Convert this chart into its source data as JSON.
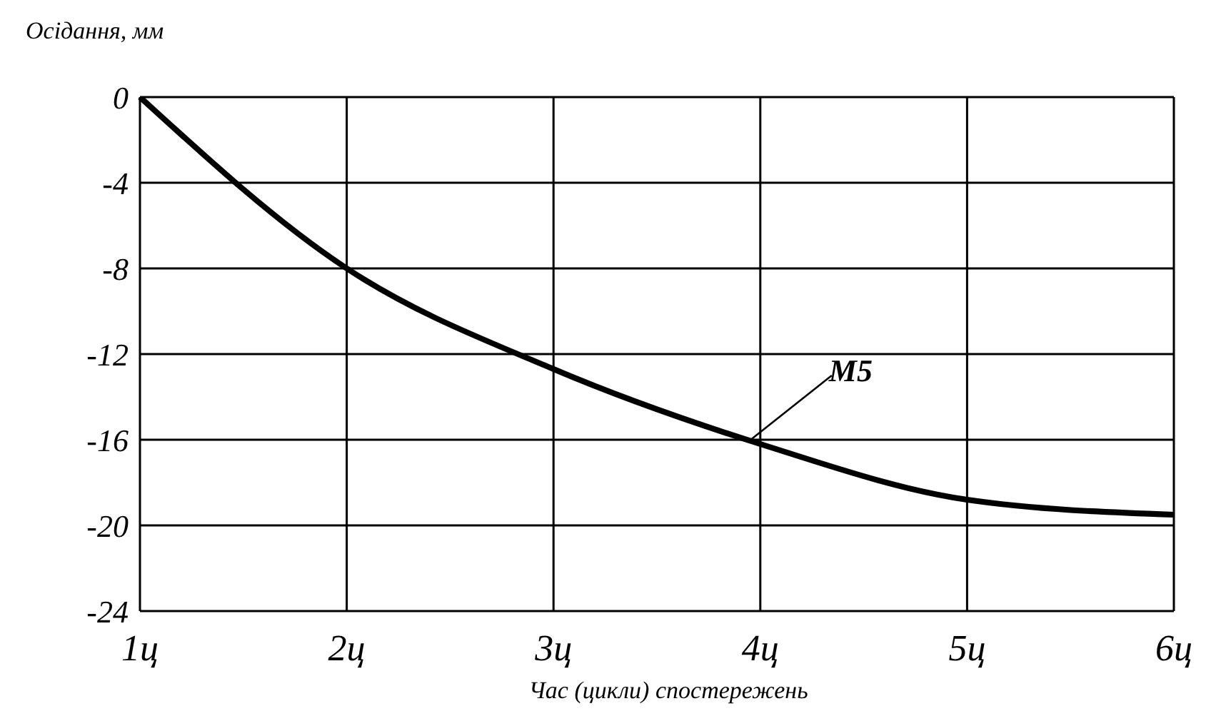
{
  "chart_data": {
    "type": "line",
    "ylabel": "Осідання, мм",
    "xlabel": "Час (цикли) спостережень",
    "categories": [
      "1ц",
      "2ц",
      "3ц",
      "4ц",
      "5ц",
      "6ц"
    ],
    "series": [
      {
        "color": "#000000",
        "values": [
          0,
          -8,
          -12.7,
          -16.2,
          -18.8,
          -19.5
        ]
      }
    ],
    "ylim": [
      -24,
      0
    ],
    "yticks": [
      0,
      -4,
      -8,
      -12,
      -16,
      -20,
      -24
    ],
    "grid": true,
    "marker": "none",
    "line_style": "solid",
    "annotations": [
      {
        "text": "M5",
        "x": "4ц",
        "y": -16.2
      }
    ]
  }
}
